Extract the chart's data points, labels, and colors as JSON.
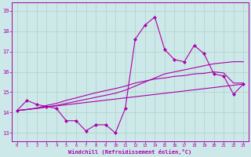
{
  "xlabel": "Windchill (Refroidissement éolien,°C)",
  "background_color": "#cde8e8",
  "grid_color": "#b0d0c8",
  "line_color": "#aa00aa",
  "x_ticks": [
    0,
    1,
    2,
    3,
    4,
    5,
    6,
    7,
    8,
    9,
    10,
    11,
    12,
    13,
    14,
    15,
    16,
    17,
    18,
    19,
    20,
    21,
    22,
    23
  ],
  "y_ticks": [
    13,
    14,
    15,
    16,
    17,
    18,
    19
  ],
  "ylim": [
    12.6,
    19.4
  ],
  "xlim": [
    -0.5,
    23.5
  ],
  "series_main": [
    14.1,
    14.6,
    14.4,
    14.3,
    14.2,
    13.6,
    13.6,
    13.1,
    13.4,
    13.4,
    13.0,
    14.2,
    17.6,
    18.3,
    18.7,
    17.1,
    16.6,
    16.5,
    17.3,
    16.9,
    15.9,
    15.8,
    14.9,
    15.4
  ],
  "series_trend1": [
    14.1,
    14.15,
    14.2,
    14.28,
    14.35,
    14.45,
    14.55,
    14.65,
    14.75,
    14.85,
    14.95,
    15.1,
    15.3,
    15.5,
    15.7,
    15.9,
    16.0,
    16.1,
    16.2,
    16.3,
    16.4,
    16.45,
    16.5,
    16.5
  ],
  "series_trend2": [
    14.1,
    14.15,
    14.22,
    14.35,
    14.45,
    14.6,
    14.72,
    14.85,
    14.97,
    15.08,
    15.18,
    15.3,
    15.45,
    15.55,
    15.65,
    15.7,
    15.78,
    15.82,
    15.9,
    15.93,
    16.0,
    15.95,
    15.45,
    15.45
  ]
}
